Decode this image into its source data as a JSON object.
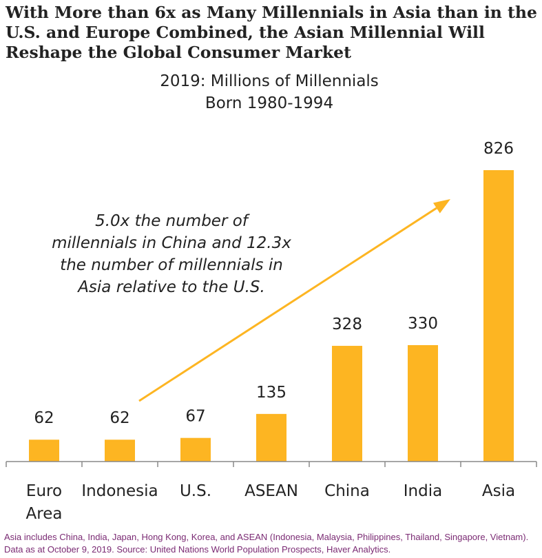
{
  "headline": {
    "lines": [
      "With More than 6x as Many Millennials in Asia than in the",
      "U.S. and Europe Combined, the Asian Millennial Will",
      "Reshape the Global Consumer Market"
    ]
  },
  "chart_data": {
    "type": "bar",
    "title": [
      "2019: Millions of Millennials",
      "Born 1980-1994"
    ],
    "categories": [
      [
        "Euro",
        "Area"
      ],
      [
        "Indonesia"
      ],
      [
        "U.S."
      ],
      [
        "ASEAN"
      ],
      [
        "China"
      ],
      [
        "India"
      ],
      [
        "Asia"
      ]
    ],
    "values": [
      62,
      62,
      67,
      135,
      328,
      330,
      826
    ],
    "data_labels": [
      "62",
      "62",
      "67",
      "135",
      "328",
      "330",
      "826"
    ],
    "bar_color": "#FDB522",
    "annotation": {
      "lines": [
        "5.0x the number of",
        "millennials in China and 12.3x",
        "the number of millennials in",
        "Asia relative to the U.S."
      ],
      "arrow_color": "#FDB522"
    },
    "xlabel": "",
    "ylabel": "",
    "grid": false,
    "legend": "none"
  },
  "footnote": "Asia includes China, India, Japan, Hong Kong, Korea, and ASEAN (Indonesia, Malaysia, Philippines, Thailand, Singapore, Vietnam). Data as at October 9, 2019. Source: United Nations World Population Prospects, Haver Analytics."
}
